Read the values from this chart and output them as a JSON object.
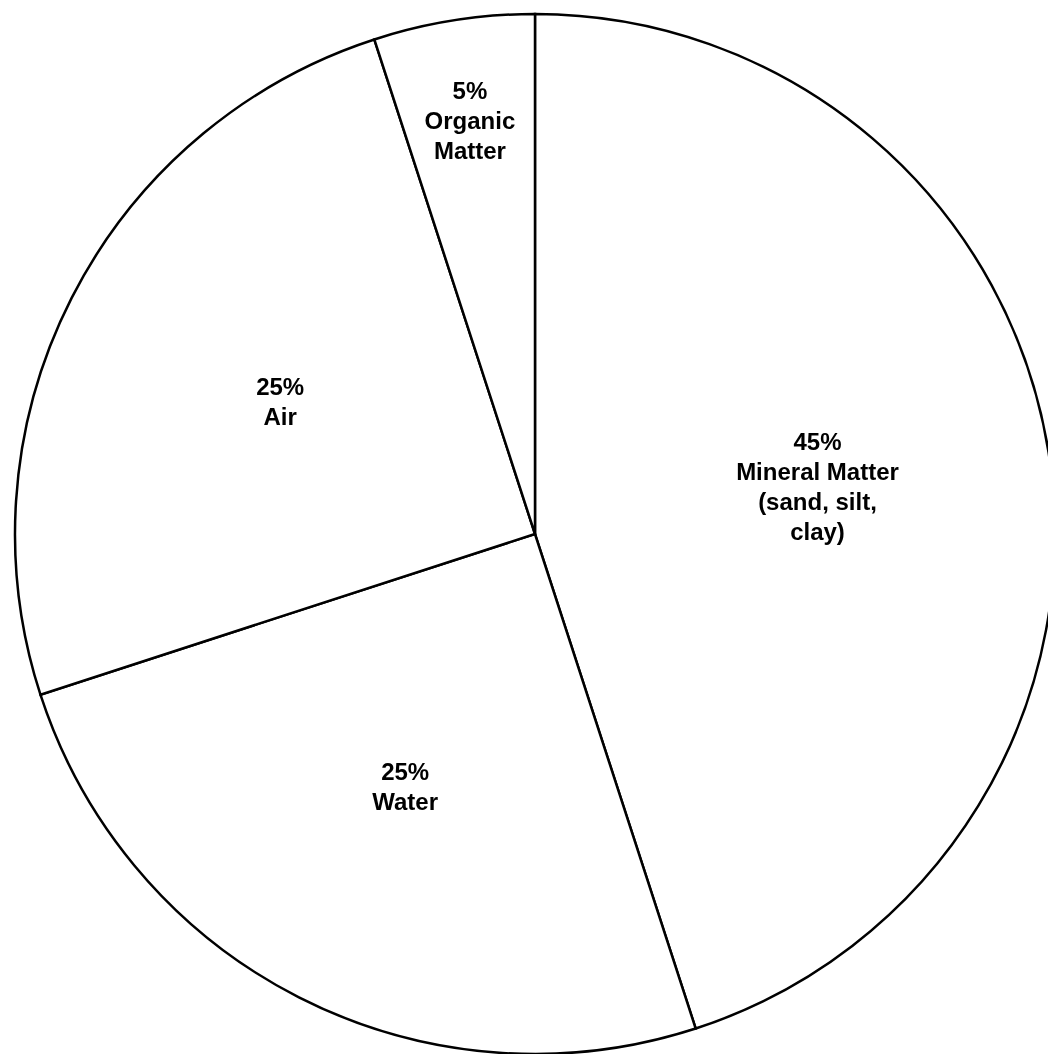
{
  "chart_data": {
    "type": "pie",
    "categories": [
      "Mineral Matter (sand, silt, clay)",
      "Water",
      "Air",
      "Organic Matter"
    ],
    "values": [
      45,
      25,
      25,
      5
    ],
    "value_labels": [
      "45%",
      "25%",
      "25%",
      "5%"
    ],
    "colors": [
      "#ffffff",
      "#ffffff",
      "#ffffff",
      "#ffffff"
    ]
  }
}
